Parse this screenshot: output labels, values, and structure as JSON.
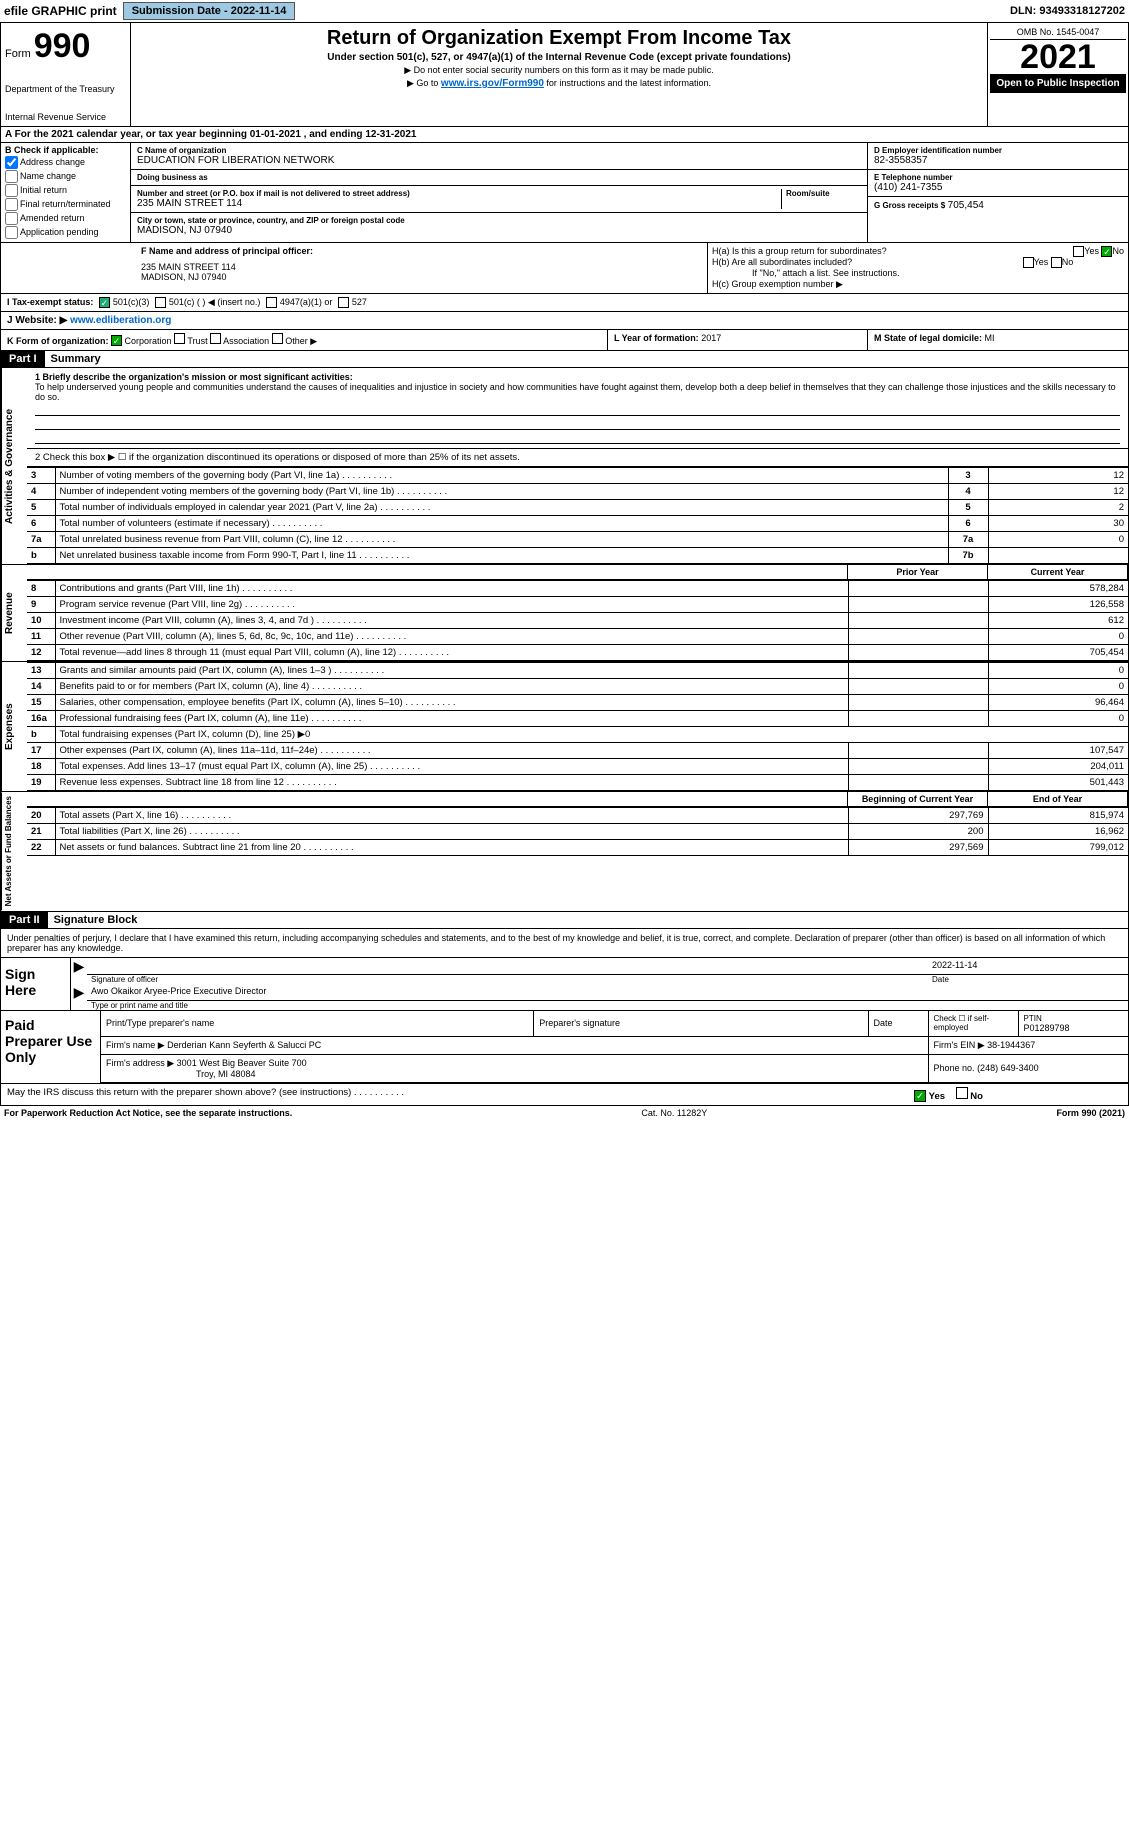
{
  "topbar": {
    "efile_label": "efile GRAPHIC print",
    "submission_label": "Submission Date - 2022-11-14",
    "dln": "DLN: 93493318127202"
  },
  "header": {
    "form_prefix": "Form",
    "form_number": "990",
    "dept": "Department of the Treasury",
    "irs": "Internal Revenue Service",
    "title": "Return of Organization Exempt From Income Tax",
    "subtitle": "Under section 501(c), 527, or 4947(a)(1) of the Internal Revenue Code (except private foundations)",
    "note1": "▶ Do not enter social security numbers on this form as it may be made public.",
    "note2_prefix": "▶ Go to ",
    "note2_link": "www.irs.gov/Form990",
    "note2_suffix": " for instructions and the latest information.",
    "omb": "OMB No. 1545-0047",
    "year": "2021",
    "inspection": "Open to Public Inspection"
  },
  "row_a": "A For the 2021 calendar year, or tax year beginning 01-01-2021   , and ending 12-31-2021",
  "section_b": {
    "header": "B Check if applicable:",
    "address_change": "Address change",
    "name_change": "Name change",
    "initial_return": "Initial return",
    "final_return": "Final return/terminated",
    "amended": "Amended return",
    "application": "Application pending"
  },
  "section_c": {
    "name_label": "C Name of organization",
    "name": "EDUCATION FOR LIBERATION NETWORK",
    "dba_label": "Doing business as",
    "dba": "",
    "street_label": "Number and street (or P.O. box if mail is not delivered to street address)",
    "room_label": "Room/suite",
    "street": "235 MAIN STREET 114",
    "city_label": "City or town, state or province, country, and ZIP or foreign postal code",
    "city": "MADISON, NJ  07940"
  },
  "section_d": {
    "ein_label": "D Employer identification number",
    "ein": "82-3558357",
    "phone_label": "E Telephone number",
    "phone": "(410) 241-7355",
    "gross_label": "G Gross receipts $",
    "gross": "705,454"
  },
  "section_f": {
    "label": "F Name and address of principal officer:",
    "addr1": "235 MAIN STREET 114",
    "addr2": "MADISON, NJ  07940"
  },
  "section_h": {
    "ha": "H(a)  Is this a group return for subordinates?",
    "ha_yes": "Yes",
    "ha_no": "No",
    "hb": "H(b)  Are all subordinates included?",
    "hb_yes": "Yes",
    "hb_no": "No",
    "hb_note": "If \"No,\" attach a list. See instructions.",
    "hc": "H(c)  Group exemption number ▶"
  },
  "row_i": {
    "label": "I  Tax-exempt status:",
    "opt1": "501(c)(3)",
    "opt2": "501(c) (   ) ◀ (insert no.)",
    "opt3": "4947(a)(1) or",
    "opt4": "527"
  },
  "row_j": {
    "label": "J  Website: ▶",
    "url": "www.edliberation.org"
  },
  "row_k": {
    "left_label": "K Form of organization:",
    "corp": "Corporation",
    "trust": "Trust",
    "assoc": "Association",
    "other": "Other ▶",
    "l_label": "L Year of formation:",
    "l_val": "2017",
    "m_label": "M State of legal domicile:",
    "m_val": "MI"
  },
  "part1": {
    "tag": "Part I",
    "title": "Summary"
  },
  "governance": {
    "label": "Activities & Governance",
    "q1_label": "1  Briefly describe the organization's mission or most significant activities:",
    "q1_text": "To help underserved young people and communities understand the causes of inequalities and injustice in society and how communities have fought against them, develop both a deep belief in themselves that they can challenge those injustices and the skills necessary to do so.",
    "q2": "2   Check this box ▶ ☐  if the organization discontinued its operations or disposed of more than 25% of its net assets.",
    "rows": [
      {
        "n": "3",
        "d": "Number of voting members of the governing body (Part VI, line 1a)",
        "box": "3",
        "v": "12"
      },
      {
        "n": "4",
        "d": "Number of independent voting members of the governing body (Part VI, line 1b)",
        "box": "4",
        "v": "12"
      },
      {
        "n": "5",
        "d": "Total number of individuals employed in calendar year 2021 (Part V, line 2a)",
        "box": "5",
        "v": "2"
      },
      {
        "n": "6",
        "d": "Total number of volunteers (estimate if necessary)",
        "box": "6",
        "v": "30"
      },
      {
        "n": "7a",
        "d": "Total unrelated business revenue from Part VIII, column (C), line 12",
        "box": "7a",
        "v": "0"
      },
      {
        "n": "b",
        "d": "Net unrelated business taxable income from Form 990-T, Part I, line 11",
        "box": "7b",
        "v": ""
      }
    ]
  },
  "revenue": {
    "label": "Revenue",
    "prior_hdr": "Prior Year",
    "current_hdr": "Current Year",
    "rows": [
      {
        "n": "8",
        "d": "Contributions and grants (Part VIII, line 1h)",
        "p": "",
        "c": "578,284"
      },
      {
        "n": "9",
        "d": "Program service revenue (Part VIII, line 2g)",
        "p": "",
        "c": "126,558"
      },
      {
        "n": "10",
        "d": "Investment income (Part VIII, column (A), lines 3, 4, and 7d )",
        "p": "",
        "c": "612"
      },
      {
        "n": "11",
        "d": "Other revenue (Part VIII, column (A), lines 5, 6d, 8c, 9c, 10c, and 11e)",
        "p": "",
        "c": "0"
      },
      {
        "n": "12",
        "d": "Total revenue—add lines 8 through 11 (must equal Part VIII, column (A), line 12)",
        "p": "",
        "c": "705,454"
      }
    ]
  },
  "expenses": {
    "label": "Expenses",
    "rows": [
      {
        "n": "13",
        "d": "Grants and similar amounts paid (Part IX, column (A), lines 1–3 )",
        "p": "",
        "c": "0"
      },
      {
        "n": "14",
        "d": "Benefits paid to or for members (Part IX, column (A), line 4)",
        "p": "",
        "c": "0"
      },
      {
        "n": "15",
        "d": "Salaries, other compensation, employee benefits (Part IX, column (A), lines 5–10)",
        "p": "",
        "c": "96,464"
      },
      {
        "n": "16a",
        "d": "Professional fundraising fees (Part IX, column (A), line 11e)",
        "p": "",
        "c": "0"
      },
      {
        "n": "b",
        "d": "Total fundraising expenses (Part IX, column (D), line 25) ▶0",
        "p": "—",
        "c": "—"
      },
      {
        "n": "17",
        "d": "Other expenses (Part IX, column (A), lines 11a–11d, 11f–24e)",
        "p": "",
        "c": "107,547"
      },
      {
        "n": "18",
        "d": "Total expenses. Add lines 13–17 (must equal Part IX, column (A), line 25)",
        "p": "",
        "c": "204,011"
      },
      {
        "n": "19",
        "d": "Revenue less expenses. Subtract line 18 from line 12",
        "p": "",
        "c": "501,443"
      }
    ]
  },
  "netassets": {
    "label": "Net Assets or Fund Balances",
    "begin_hdr": "Beginning of Current Year",
    "end_hdr": "End of Year",
    "rows": [
      {
        "n": "20",
        "d": "Total assets (Part X, line 16)",
        "p": "297,769",
        "c": "815,974"
      },
      {
        "n": "21",
        "d": "Total liabilities (Part X, line 26)",
        "p": "200",
        "c": "16,962"
      },
      {
        "n": "22",
        "d": "Net assets or fund balances. Subtract line 21 from line 20",
        "p": "297,569",
        "c": "799,012"
      }
    ]
  },
  "part2": {
    "tag": "Part II",
    "title": "Signature Block",
    "declaration": "Under penalties of perjury, I declare that I have examined this return, including accompanying schedules and statements, and to the best of my knowledge and belief, it is true, correct, and complete. Declaration of preparer (other than officer) is based on all information of which preparer has any knowledge."
  },
  "sign": {
    "here": "Sign Here",
    "sig_label": "Signature of officer",
    "date": "2022-11-14",
    "date_label": "Date",
    "name": "Awo Okaikor Aryee-Price  Executive Director",
    "name_label": "Type or print name and title"
  },
  "paid": {
    "label": "Paid Preparer Use Only",
    "h1": "Print/Type preparer's name",
    "h2": "Preparer's signature",
    "h3": "Date",
    "h4_a": "Check ☐ if self-employed",
    "h4_b": "PTIN",
    "ptin": "P01289798",
    "firm_name_lbl": "Firm's name      ▶",
    "firm_name": "Derderian Kann Seyferth & Salucci PC",
    "firm_ein_lbl": "Firm's EIN ▶",
    "firm_ein": "38-1944367",
    "firm_addr_lbl": "Firm's address ▶",
    "firm_addr1": "3001 West Big Beaver Suite 700",
    "firm_addr2": "Troy, MI  48084",
    "phone_lbl": "Phone no.",
    "phone": "(248) 649-3400"
  },
  "footer": {
    "discuss": "May the IRS discuss this return with the preparer shown above? (see instructions)",
    "yes": "Yes",
    "no": "No",
    "paperwork": "For Paperwork Reduction Act Notice, see the separate instructions.",
    "cat": "Cat. No. 11282Y",
    "formref": "Form 990 (2021)"
  },
  "colors": {
    "button_bg": "#9ec9e2",
    "link": "#0066cc",
    "check_green": "#00aa00"
  }
}
